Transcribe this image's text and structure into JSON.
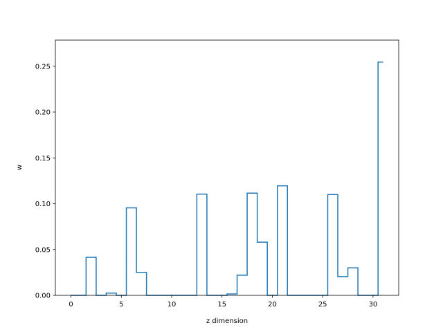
{
  "chart_data": {
    "type": "step",
    "title": "",
    "xlabel": "z dimension",
    "ylabel": "w",
    "xlim": [
      -1.55,
      32.55
    ],
    "ylim": [
      0,
      0.2785
    ],
    "x_ticks": [
      0,
      5,
      10,
      15,
      20,
      25,
      30
    ],
    "y_ticks": [
      0.0,
      0.05,
      0.1,
      0.15,
      0.2,
      0.25
    ],
    "y_tick_labels": [
      "0.00",
      "0.05",
      "0.10",
      "0.15",
      "0.20",
      "0.25"
    ],
    "x": [
      0,
      1,
      2,
      3,
      4,
      5,
      6,
      7,
      8,
      9,
      10,
      11,
      12,
      13,
      14,
      15,
      16,
      17,
      18,
      19,
      20,
      21,
      22,
      23,
      24,
      25,
      26,
      27,
      28,
      29,
      30,
      31
    ],
    "values": [
      0.0,
      0.0,
      0.0415,
      0.0,
      0.0025,
      0.0,
      0.0955,
      0.025,
      0.0,
      0.0,
      0.0,
      0.0,
      0.0,
      0.1105,
      0.0,
      0.0,
      0.0015,
      0.022,
      0.1115,
      0.058,
      0.0,
      0.1195,
      0.0,
      0.0,
      0.0,
      0.0,
      0.11,
      0.0205,
      0.03,
      0.0,
      0.0,
      0.2545
    ],
    "step_where": "mid",
    "line_color": "#1f77b4",
    "grid": false,
    "legend": false
  }
}
